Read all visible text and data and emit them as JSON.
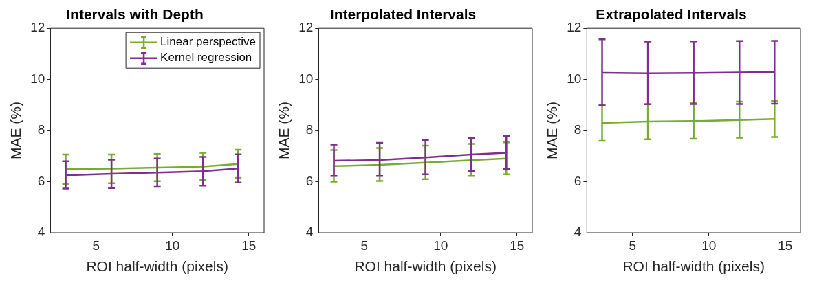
{
  "chart_data": [
    {
      "type": "line",
      "title": "Intervals with Depth",
      "xlabel": "ROI half-width (pixels)",
      "ylabel": "MAE (%)",
      "xlim": [
        2,
        16
      ],
      "xticks": [
        5,
        10,
        15
      ],
      "ylim": [
        4,
        12
      ],
      "yticks": [
        4,
        6,
        8,
        10,
        12
      ],
      "grid": false,
      "legend": "top right",
      "marker": "none",
      "line_style": "solid",
      "x": [
        3,
        6,
        9,
        12,
        14.3
      ],
      "series": [
        {
          "name": "Linear perspective",
          "color": "#77ac30",
          "values": [
            6.49,
            6.51,
            6.55,
            6.59,
            6.69
          ],
          "errors": [
            [
              5.91,
              7.06
            ],
            [
              5.94,
              7.06
            ],
            [
              6.02,
              7.08
            ],
            [
              6.07,
              7.13
            ],
            [
              6.15,
              7.25
            ]
          ]
        },
        {
          "name": "Kernel regression",
          "color": "#7e2f8e",
          "values": [
            6.25,
            6.31,
            6.36,
            6.41,
            6.52
          ],
          "errors": [
            [
              5.73,
              6.8
            ],
            [
              5.75,
              6.86
            ],
            [
              5.8,
              6.91
            ],
            [
              5.85,
              6.97
            ],
            [
              5.97,
              7.07
            ]
          ]
        }
      ]
    },
    {
      "type": "line",
      "title": "Interpolated Intervals",
      "xlabel": "ROI half-width (pixels)",
      "ylabel": "MAE (%)",
      "xlim": [
        2,
        16
      ],
      "xticks": [
        5,
        10,
        15
      ],
      "ylim": [
        4,
        12
      ],
      "yticks": [
        4,
        6,
        8,
        10,
        12
      ],
      "grid": false,
      "legend": false,
      "marker": "none",
      "line_style": "solid",
      "x": [
        3,
        6,
        9,
        12,
        14.3
      ],
      "series": [
        {
          "color": "#77ac30",
          "values": [
            6.61,
            6.66,
            6.75,
            6.84,
            6.91
          ],
          "errors": [
            [
              6.0,
              7.24
            ],
            [
              6.03,
              7.32
            ],
            [
              6.1,
              7.41
            ],
            [
              6.22,
              7.48
            ],
            [
              6.29,
              7.54
            ]
          ]
        },
        {
          "color": "#7e2f8e",
          "values": [
            6.82,
            6.85,
            6.95,
            7.06,
            7.13
          ],
          "errors": [
            [
              6.22,
              7.45
            ],
            [
              6.22,
              7.52
            ],
            [
              6.29,
              7.63
            ],
            [
              6.41,
              7.71
            ],
            [
              6.49,
              7.78
            ]
          ]
        }
      ]
    },
    {
      "type": "line",
      "title": "Extrapolated Intervals",
      "xlabel": "ROI half-width (pixels)",
      "ylabel": "MAE (%)",
      "xlim": [
        2,
        16
      ],
      "xticks": [
        5,
        10,
        15
      ],
      "ylim": [
        4,
        12
      ],
      "yticks": [
        4,
        6,
        8,
        10,
        12
      ],
      "grid": false,
      "legend": false,
      "marker": "none",
      "line_style": "solid",
      "x": [
        3,
        6,
        9,
        12,
        14.3
      ],
      "series": [
        {
          "color": "#77ac30",
          "values": [
            8.3,
            8.35,
            8.37,
            8.41,
            8.45
          ],
          "errors": [
            [
              7.6,
              8.98
            ],
            [
              7.66,
              9.03
            ],
            [
              7.68,
              9.09
            ],
            [
              7.72,
              9.13
            ],
            [
              7.75,
              9.16
            ]
          ]
        },
        {
          "color": "#7e2f8e",
          "values": [
            10.26,
            10.24,
            10.25,
            10.27,
            10.29
          ],
          "errors": [
            [
              8.98,
              11.57
            ],
            [
              9.03,
              11.48
            ],
            [
              9.04,
              11.49
            ],
            [
              9.04,
              11.5
            ],
            [
              9.05,
              11.51
            ]
          ]
        }
      ]
    }
  ]
}
